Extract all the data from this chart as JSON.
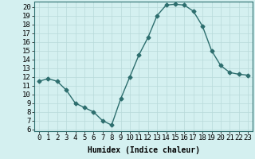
{
  "x": [
    0,
    1,
    2,
    3,
    4,
    5,
    6,
    7,
    8,
    9,
    10,
    11,
    12,
    13,
    14,
    15,
    16,
    17,
    18,
    19,
    20,
    21,
    22,
    23
  ],
  "y": [
    11.5,
    11.8,
    11.5,
    10.5,
    9.0,
    8.5,
    8.0,
    7.0,
    6.5,
    9.5,
    12.0,
    14.5,
    16.5,
    19.0,
    20.2,
    20.3,
    20.2,
    19.5,
    17.8,
    15.0,
    13.3,
    12.5,
    12.3,
    12.2
  ],
  "line_color": "#2d6e6e",
  "marker": "D",
  "marker_size": 2.5,
  "bg_color": "#d4f0f0",
  "grid_color": "#b8dada",
  "xlabel": "Humidex (Indice chaleur)",
  "ylabel_ticks": [
    6,
    7,
    8,
    9,
    10,
    11,
    12,
    13,
    14,
    15,
    16,
    17,
    18,
    19,
    20
  ],
  "ylim": [
    5.8,
    20.6
  ],
  "xlim": [
    -0.5,
    23.5
  ],
  "xlabel_fontsize": 7,
  "tick_fontsize": 6.5
}
